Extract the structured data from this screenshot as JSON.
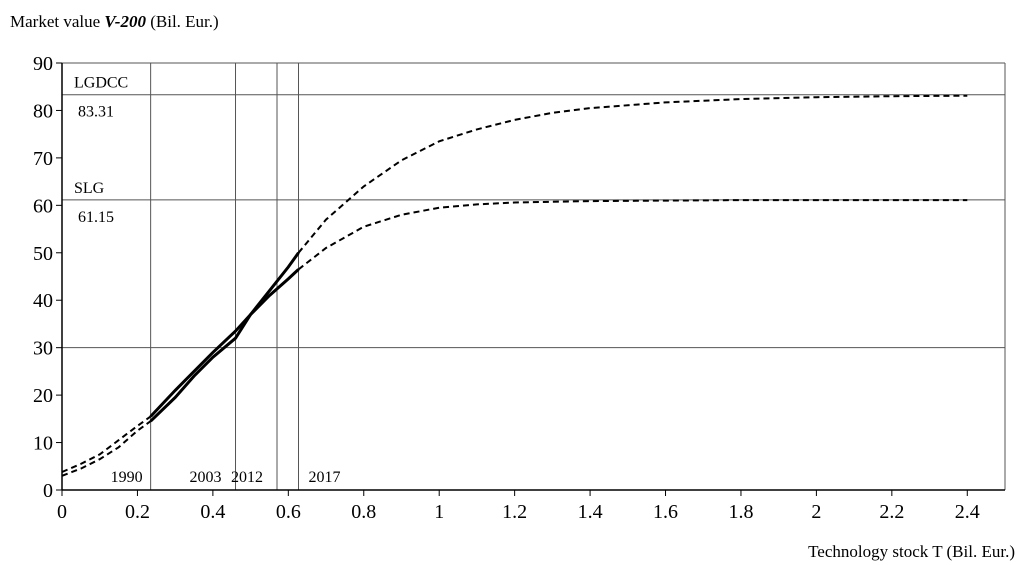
{
  "chart_data": {
    "type": "line",
    "ylabel_prefix": "Market value ",
    "ylabel_var": "V-200",
    "ylabel_suffix": " (Bil. Eur.)",
    "xlabel": "Technology stock T (Bil. Eur.)",
    "xlim": [
      0,
      2.5
    ],
    "ylim": [
      0,
      90
    ],
    "x_ticks": [
      0,
      0.2,
      0.4,
      0.6,
      0.8,
      1,
      1.2,
      1.4,
      1.6,
      1.8,
      2,
      2.2,
      2.4
    ],
    "x_tick_labels": [
      "0",
      "0.2",
      "0.4",
      "0.6",
      "0.8",
      "1",
      "1.2",
      "1.4",
      "1.6",
      "1.8",
      "2",
      "2.2",
      "2.4"
    ],
    "y_ticks": [
      0,
      10,
      20,
      30,
      40,
      50,
      60,
      70,
      80,
      90
    ],
    "y_tick_labels": [
      "0",
      "10",
      "20",
      "30",
      "40",
      "50",
      "60",
      "70",
      "80",
      "90"
    ],
    "y_gridlines": [
      30,
      90
    ],
    "asymptotes": [
      {
        "label": "LGDCC",
        "value_label": "83.31",
        "y": 83.31
      },
      {
        "label": "SLG",
        "value_label": "61.15",
        "y": 61.15
      }
    ],
    "year_markers": [
      {
        "label": "1990",
        "x": 0.235
      },
      {
        "label": "2003",
        "x": 0.46
      },
      {
        "label": "2012",
        "x": 0.57
      },
      {
        "label": "2017",
        "x": 0.627
      }
    ],
    "series": [
      {
        "x": [
          0,
          0.05,
          0.1,
          0.15,
          0.2,
          0.235,
          0.3,
          0.35,
          0.4,
          0.46,
          0.5,
          0.55,
          0.6,
          0.627,
          0.7,
          0.8,
          0.9,
          1.0,
          1.1,
          1.2,
          1.3,
          1.4,
          1.6,
          1.8,
          2.0,
          2.2,
          2.4
        ],
        "y": [
          3,
          4.5,
          6.5,
          9,
          12.5,
          14.5,
          19.5,
          24,
          28,
          32,
          37,
          42,
          47,
          50,
          57,
          64,
          69.5,
          73.5,
          76,
          78,
          79.5,
          80.5,
          81.7,
          82.4,
          82.8,
          83.0,
          83.1
        ],
        "solid_range": [
          0.235,
          0.627
        ]
      },
      {
        "x": [
          0,
          0.05,
          0.1,
          0.15,
          0.2,
          0.235,
          0.3,
          0.35,
          0.4,
          0.46,
          0.5,
          0.55,
          0.6,
          0.627,
          0.7,
          0.8,
          0.9,
          1.0,
          1.1,
          1.2,
          1.4,
          1.6,
          1.8,
          2.0,
          2.2,
          2.4
        ],
        "y": [
          3.8,
          5.5,
          7.5,
          10.5,
          13.5,
          15.5,
          21,
          25,
          29,
          33.5,
          37,
          41,
          44.5,
          46.5,
          51,
          55.5,
          58,
          59.5,
          60.2,
          60.6,
          60.9,
          61.0,
          61.1,
          61.1,
          61.1,
          61.1
        ],
        "solid_range": [
          0.235,
          0.627
        ]
      }
    ]
  }
}
